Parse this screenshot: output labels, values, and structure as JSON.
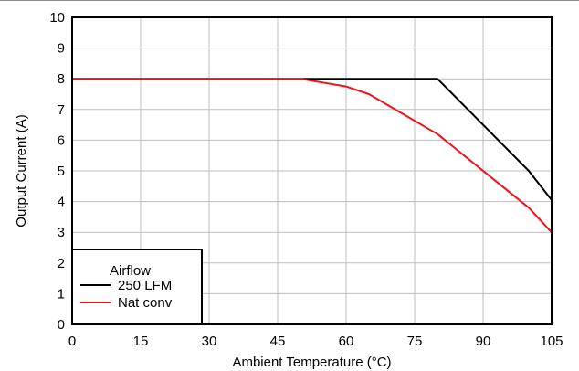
{
  "chart_data": {
    "type": "line",
    "xlabel": "Ambient Temperature (°C)",
    "ylabel": "Output Current (A)",
    "xlim": [
      0,
      105
    ],
    "ylim": [
      0,
      10
    ],
    "xticks": [
      0,
      15,
      30,
      45,
      60,
      75,
      90,
      105
    ],
    "yticks": [
      0,
      1,
      2,
      3,
      4,
      5,
      6,
      7,
      8,
      9,
      10
    ],
    "xtick_labels": [
      "0",
      "15",
      "30",
      "45",
      "60",
      "75",
      "90",
      "105"
    ],
    "ytick_labels": [
      "0",
      "1",
      "2",
      "3",
      "4",
      "5",
      "6",
      "7",
      "8",
      "9",
      "10"
    ],
    "grid": true,
    "legend": {
      "title": "Airflow",
      "placement": "bottom-left",
      "entries": [
        "250 LFM",
        "Nat conv"
      ]
    },
    "series": [
      {
        "name": "250 LFM",
        "color": "#000000",
        "x": [
          0,
          80,
          100,
          105
        ],
        "y": [
          8,
          8,
          5,
          4.05
        ]
      },
      {
        "name": "Nat conv",
        "color": "#e8141e",
        "x": [
          0,
          50,
          60,
          65,
          80,
          100,
          105
        ],
        "y": [
          8,
          8,
          7.75,
          7.5,
          6.2,
          3.8,
          3.0
        ]
      }
    ]
  }
}
